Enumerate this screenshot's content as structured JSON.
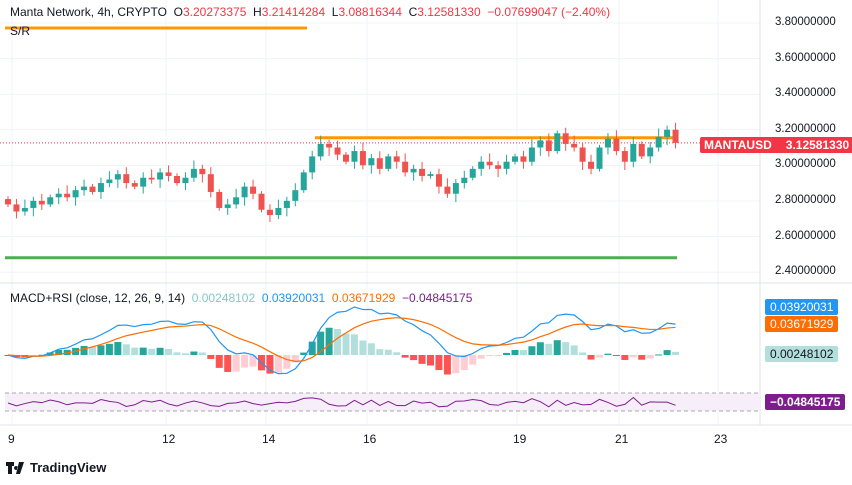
{
  "header": {
    "title": "Manta Network, 4h, CRYPTO",
    "o_label": "O",
    "o": "3.20273375",
    "h_label": "H",
    "h": "3.21414284",
    "l_label": "L",
    "l": "3.08816344",
    "c_label": "C",
    "c": "3.12581330",
    "change": "−0.07699047 (−2.40%)",
    "indicator": "S/R"
  },
  "price_axis": [
    "3.80000000",
    "3.60000000",
    "3.40000000",
    "3.20000000",
    "3.00000000",
    "2.80000000",
    "2.60000000",
    "2.40000000"
  ],
  "symbol_tag": {
    "symbol": "MANTAUSD",
    "price": "3.12581330"
  },
  "macd": {
    "title": "MACD+RSI (close, 12, 26, 9, 14)",
    "hist": "0.00248102",
    "macd": "0.03920031",
    "signal": "0.03671929",
    "rsi": "−0.04845175"
  },
  "time_axis": [
    "9",
    "12",
    "14",
    "16",
    "19",
    "21",
    "23"
  ],
  "logo": "TradingView",
  "colors": {
    "up": "#26a69a",
    "down": "#ef5350",
    "orange": "#ff9800",
    "green": "#4caf50",
    "macd": "#2196f3",
    "signal": "#ff6d00",
    "rsi": "#7e1e8c"
  },
  "chart_data": {
    "type": "candlestick",
    "ylim": [
      2.4,
      3.8
    ],
    "levels": [
      3.79,
      3.155,
      2.48
    ],
    "close": [
      2.78,
      2.74,
      2.76,
      2.8,
      2.78,
      2.82,
      2.84,
      2.82,
      2.86,
      2.88,
      2.85,
      2.9,
      2.92,
      2.95,
      2.9,
      2.88,
      2.93,
      2.92,
      2.96,
      2.94,
      2.9,
      2.93,
      2.98,
      2.95,
      2.85,
      2.76,
      2.78,
      2.82,
      2.88,
      2.84,
      2.75,
      2.72,
      2.76,
      2.8,
      2.86,
      2.96,
      3.05,
      3.12,
      3.1,
      3.06,
      3.02,
      3.08,
      3.0,
      3.04,
      2.98,
      3.05,
      3.02,
      2.96,
      2.98,
      2.94,
      2.95,
      2.88,
      2.84,
      2.9,
      2.93,
      2.98,
      3.02,
      3.0,
      2.98,
      3.02,
      3.05,
      3.02,
      3.1,
      3.14,
      3.08,
      3.18,
      3.12,
      3.1,
      3.02,
      2.98,
      3.1,
      3.15,
      3.08,
      3.02,
      3.12,
      3.05,
      3.1,
      3.16,
      3.2,
      3.1258
    ]
  }
}
